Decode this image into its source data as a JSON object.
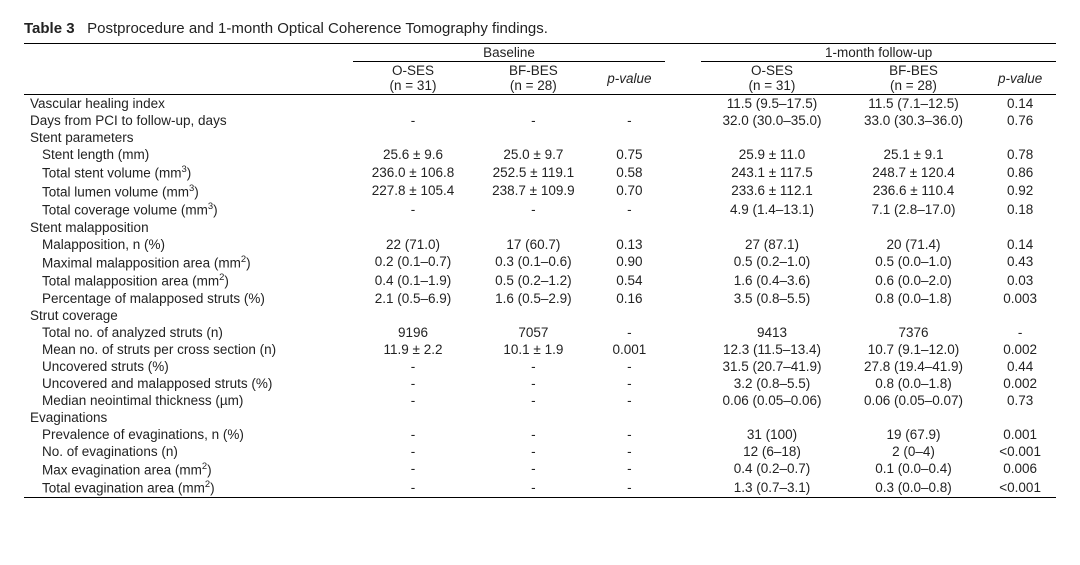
{
  "title_label": "Table 3",
  "title_text": "Postprocedure and 1-month Optical Coherence Tomography findings.",
  "sections": {
    "baseline": "Baseline",
    "followup": "1-month follow-up"
  },
  "col": {
    "oses_label": "O-SES",
    "oses_n": "(n = 31)",
    "bfbes_label": "BF-BES",
    "bfbes_n": "(n = 28)",
    "pval": "p-value"
  },
  "rows": [
    {
      "label": "Vascular healing index",
      "indent": 0,
      "b1": "",
      "b2": "",
      "bp": "",
      "f1": "11.5 (9.5–17.5)",
      "f2": "11.5 (7.1–12.5)",
      "fp": "0.14"
    },
    {
      "label": "Days from PCI to follow-up, days",
      "indent": 0,
      "b1": "-",
      "b2": "-",
      "bp": "-",
      "f1": "32.0 (30.0–35.0)",
      "f2": "33.0 (30.3–36.0)",
      "fp": "0.76"
    },
    {
      "label": "Stent parameters",
      "indent": 0,
      "b1": "",
      "b2": "",
      "bp": "",
      "f1": "",
      "f2": "",
      "fp": ""
    },
    {
      "label": "Stent length (mm)",
      "indent": 1,
      "b1": "25.6 ± 9.6",
      "b2": "25.0 ± 9.7",
      "bp": "0.75",
      "f1": "25.9 ± 11.0",
      "f2": "25.1 ± 9.1",
      "fp": "0.78"
    },
    {
      "label": "Total stent volume (mm³)",
      "indent": 1,
      "b1": "236.0 ± 106.8",
      "b2": "252.5 ± 119.1",
      "bp": "0.58",
      "f1": "243.1 ± 117.5",
      "f2": "248.7 ± 120.4",
      "fp": "0.86"
    },
    {
      "label": "Total lumen volume (mm³)",
      "indent": 1,
      "b1": "227.8 ± 105.4",
      "b2": "238.7 ± 109.9",
      "bp": "0.70",
      "f1": "233.6 ± 112.1",
      "f2": "236.6 ± 110.4",
      "fp": "0.92"
    },
    {
      "label": "Total coverage volume (mm³)",
      "indent": 1,
      "b1": "-",
      "b2": "-",
      "bp": "-",
      "f1": "4.9 (1.4–13.1)",
      "f2": "7.1 (2.8–17.0)",
      "fp": "0.18"
    },
    {
      "label": "Stent malapposition",
      "indent": 0,
      "b1": "",
      "b2": "",
      "bp": "",
      "f1": "",
      "f2": "",
      "fp": ""
    },
    {
      "label": "Malapposition, n (%)",
      "indent": 1,
      "b1": "22 (71.0)",
      "b2": "17 (60.7)",
      "bp": "0.13",
      "f1": "27 (87.1)",
      "f2": "20 (71.4)",
      "fp": "0.14"
    },
    {
      "label": "Maximal malapposition area (mm²)",
      "indent": 1,
      "b1": "0.2 (0.1–0.7)",
      "b2": "0.3 (0.1–0.6)",
      "bp": "0.90",
      "f1": "0.5 (0.2–1.0)",
      "f2": "0.5 (0.0–1.0)",
      "fp": "0.43"
    },
    {
      "label": "Total malapposition area (mm²)",
      "indent": 1,
      "b1": "0.4 (0.1–1.9)",
      "b2": "0.5 (0.2–1.2)",
      "bp": "0.54",
      "f1": "1.6 (0.4–3.6)",
      "f2": "0.6 (0.0–2.0)",
      "fp": "0.03"
    },
    {
      "label": "Percentage of malapposed struts (%)",
      "indent": 1,
      "b1": "2.1 (0.5–6.9)",
      "b2": "1.6 (0.5–2.9)",
      "bp": "0.16",
      "f1": "3.5 (0.8–5.5)",
      "f2": "0.8 (0.0–1.8)",
      "fp": "0.003"
    },
    {
      "label": "Strut coverage",
      "indent": 0,
      "b1": "",
      "b2": "",
      "bp": "",
      "f1": "",
      "f2": "",
      "fp": ""
    },
    {
      "label": "Total no. of analyzed struts (n)",
      "indent": 1,
      "b1": "9196",
      "b2": "7057",
      "bp": "-",
      "f1": "9413",
      "f2": "7376",
      "fp": "-"
    },
    {
      "label": "Mean no. of struts per cross section (n)",
      "indent": 1,
      "b1": "11.9 ± 2.2",
      "b2": "10.1 ± 1.9",
      "bp": "0.001",
      "f1": "12.3 (11.5–13.4)",
      "f2": "10.7 (9.1–12.0)",
      "fp": "0.002"
    },
    {
      "label": "Uncovered struts (%)",
      "indent": 1,
      "b1": "-",
      "b2": "-",
      "bp": "-",
      "f1": "31.5 (20.7–41.9)",
      "f2": "27.8 (19.4–41.9)",
      "fp": "0.44"
    },
    {
      "label": "Uncovered and malapposed struts (%)",
      "indent": 1,
      "b1": "-",
      "b2": "-",
      "bp": "-",
      "f1": "3.2 (0.8–5.5)",
      "f2": "0.8 (0.0–1.8)",
      "fp": "0.002"
    },
    {
      "label": "Median neointimal thickness (µm)",
      "indent": 1,
      "b1": "-",
      "b2": "-",
      "bp": "-",
      "f1": "0.06 (0.05–0.06)",
      "f2": "0.06 (0.05–0.07)",
      "fp": "0.73"
    },
    {
      "label": "Evaginations",
      "indent": 0,
      "b1": "",
      "b2": "",
      "bp": "",
      "f1": "",
      "f2": "",
      "fp": ""
    },
    {
      "label": "Prevalence of evaginations, n (%)",
      "indent": 1,
      "b1": "-",
      "b2": "-",
      "bp": "-",
      "f1": "31 (100)",
      "f2": "19 (67.9)",
      "fp": "0.001"
    },
    {
      "label": "No. of evaginations (n)",
      "indent": 1,
      "b1": "-",
      "b2": "-",
      "bp": "-",
      "f1": "12 (6–18)",
      "f2": "2 (0–4)",
      "fp": "<0.001"
    },
    {
      "label": "Max evagination area (mm²)",
      "indent": 1,
      "b1": "-",
      "b2": "-",
      "bp": "-",
      "f1": "0.4 (0.2–0.7)",
      "f2": "0.1 (0.0–0.4)",
      "fp": "0.006"
    },
    {
      "label": "Total evagination area (mm²)",
      "indent": 1,
      "b1": "-",
      "b2": "-",
      "bp": "-",
      "f1": "1.3 (0.7–3.1)",
      "f2": "0.3 (0.0–0.8)",
      "fp": "<0.001"
    }
  ]
}
